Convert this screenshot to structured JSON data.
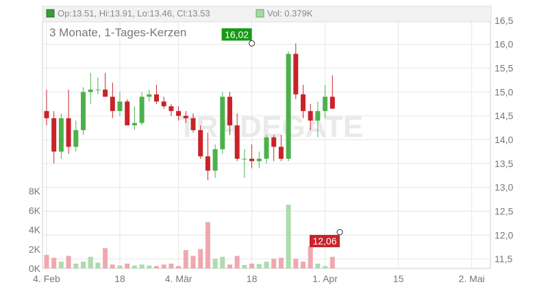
{
  "header": {
    "ohlc_label": "Op:13.51, Hi:13.91, Lo:13.46, Cl:13.53",
    "vol_label": "Vol: 0.379K",
    "ohlc_color": "#3a9a3a",
    "vol_color": "#a7d8a7"
  },
  "subtitle": "3 Monate, 1-Tages-Kerzen",
  "watermark": "TRADEGATE",
  "colors": {
    "up": "#4cb14c",
    "down": "#c8232a",
    "up_volume": "#acdcac",
    "down_volume": "#f0a8b0",
    "grid": "#e6e6e6",
    "axis_text": "#777777",
    "high_label_bg": "#169a16",
    "low_label_bg": "#c8232a"
  },
  "chart_data": {
    "type": "candlestick",
    "ylim": [
      11.3,
      16.8
    ],
    "y_ticks": [
      "11,5",
      "12,0",
      "12,5",
      "13,0",
      "13,5",
      "14,0",
      "14,5",
      "15,0",
      "15,5",
      "16,0",
      "16,5"
    ],
    "y_tick_values": [
      11.5,
      12.0,
      12.5,
      13.0,
      13.5,
      14.0,
      14.5,
      15.0,
      15.5,
      16.0,
      16.5
    ],
    "volume_ylim": [
      0,
      9000
    ],
    "volume_ticks": [
      "0K",
      "2K",
      "4K",
      "6K",
      "8K"
    ],
    "volume_tick_values": [
      0,
      2000,
      4000,
      6000,
      8000
    ],
    "x_ticks": [
      {
        "label": "4. Feb",
        "index": 0
      },
      {
        "label": "18",
        "index": 10
      },
      {
        "label": "4. Mär",
        "index": 18
      },
      {
        "label": "18",
        "index": 28
      },
      {
        "label": "1. Apr",
        "index": 38
      },
      {
        "label": "15",
        "index": 48
      },
      {
        "label": "2. Mai",
        "index": 58
      }
    ],
    "high_label": {
      "text": "16,02",
      "value": 16.02,
      "index": 28
    },
    "low_label": {
      "text": "12,06",
      "value": 12.06,
      "index": 40
    },
    "candles": [
      {
        "o": 14.6,
        "h": 15.05,
        "l": 14.3,
        "c": 14.45,
        "v": 1400
      },
      {
        "o": 14.45,
        "h": 14.6,
        "l": 13.5,
        "c": 13.75,
        "v": 1100
      },
      {
        "o": 13.75,
        "h": 14.55,
        "l": 13.6,
        "c": 14.45,
        "v": 700
      },
      {
        "o": 14.45,
        "h": 15.05,
        "l": 13.7,
        "c": 13.85,
        "v": 1300
      },
      {
        "o": 13.85,
        "h": 14.4,
        "l": 13.75,
        "c": 14.2,
        "v": 500
      },
      {
        "o": 14.2,
        "h": 15.1,
        "l": 14.1,
        "c": 15.0,
        "v": 700
      },
      {
        "o": 15.0,
        "h": 15.4,
        "l": 14.75,
        "c": 15.05,
        "v": 1200
      },
      {
        "o": 15.05,
        "h": 15.3,
        "l": 14.95,
        "c": 15.05,
        "v": 600
      },
      {
        "o": 15.05,
        "h": 15.4,
        "l": 14.9,
        "c": 14.9,
        "v": 2100
      },
      {
        "o": 14.9,
        "h": 15.2,
        "l": 14.45,
        "c": 14.6,
        "v": 400
      },
      {
        "o": 14.6,
        "h": 15.0,
        "l": 14.5,
        "c": 14.8,
        "v": 300
      },
      {
        "o": 14.8,
        "h": 14.85,
        "l": 14.3,
        "c": 14.3,
        "v": 500
      },
      {
        "o": 14.3,
        "h": 14.7,
        "l": 14.2,
        "c": 14.35,
        "v": 300
      },
      {
        "o": 14.35,
        "h": 15.0,
        "l": 14.3,
        "c": 14.9,
        "v": 400
      },
      {
        "o": 14.9,
        "h": 15.05,
        "l": 14.8,
        "c": 14.95,
        "v": 300
      },
      {
        "o": 14.95,
        "h": 15.15,
        "l": 14.75,
        "c": 14.8,
        "v": 250
      },
      {
        "o": 14.8,
        "h": 14.9,
        "l": 14.65,
        "c": 14.7,
        "v": 400
      },
      {
        "o": 14.7,
        "h": 14.75,
        "l": 14.5,
        "c": 14.6,
        "v": 500
      },
      {
        "o": 14.6,
        "h": 14.7,
        "l": 14.4,
        "c": 14.5,
        "v": 250
      },
      {
        "o": 14.5,
        "h": 14.6,
        "l": 14.35,
        "c": 14.45,
        "v": 1900
      },
      {
        "o": 14.45,
        "h": 14.55,
        "l": 14.15,
        "c": 14.2,
        "v": 1300
      },
      {
        "o": 14.2,
        "h": 14.3,
        "l": 13.6,
        "c": 13.65,
        "v": 2000
      },
      {
        "o": 13.65,
        "h": 14.15,
        "l": 13.15,
        "c": 13.35,
        "v": 4800
      },
      {
        "o": 13.35,
        "h": 13.9,
        "l": 13.2,
        "c": 13.8,
        "v": 1000
      },
      {
        "o": 13.8,
        "h": 15.0,
        "l": 13.7,
        "c": 14.9,
        "v": 1200
      },
      {
        "o": 14.9,
        "h": 15.0,
        "l": 14.1,
        "c": 14.3,
        "v": 400
      },
      {
        "o": 14.3,
        "h": 14.55,
        "l": 13.55,
        "c": 13.6,
        "v": 1300
      },
      {
        "o": 13.6,
        "h": 13.8,
        "l": 13.2,
        "c": 13.6,
        "v": 350
      },
      {
        "o": 13.6,
        "h": 13.9,
        "l": 13.4,
        "c": 13.55,
        "v": 500
      },
      {
        "o": 13.55,
        "h": 13.75,
        "l": 13.4,
        "c": 13.6,
        "v": 450
      },
      {
        "o": 13.6,
        "h": 14.1,
        "l": 13.5,
        "c": 14.05,
        "v": 700
      },
      {
        "o": 14.05,
        "h": 14.1,
        "l": 13.55,
        "c": 13.85,
        "v": 1000
      },
      {
        "o": 13.85,
        "h": 14.1,
        "l": 13.55,
        "c": 13.6,
        "v": 1100
      },
      {
        "o": 13.6,
        "h": 15.85,
        "l": 13.55,
        "c": 15.8,
        "v": 6600
      },
      {
        "o": 15.8,
        "h": 16.02,
        "l": 14.85,
        "c": 14.95,
        "v": 1000
      },
      {
        "o": 14.95,
        "h": 15.15,
        "l": 14.45,
        "c": 14.6,
        "v": 700
      },
      {
        "o": 14.6,
        "h": 14.75,
        "l": 14.2,
        "c": 14.4,
        "v": 2300
      },
      {
        "o": 14.4,
        "h": 14.8,
        "l": 14.05,
        "c": 14.6,
        "v": 500
      },
      {
        "o": 14.6,
        "h": 15.15,
        "l": 14.45,
        "c": 14.9,
        "v": 250
      },
      {
        "o": 14.9,
        "h": 15.35,
        "l": 14.65,
        "c": 14.65,
        "v": 1200
      }
    ]
  }
}
